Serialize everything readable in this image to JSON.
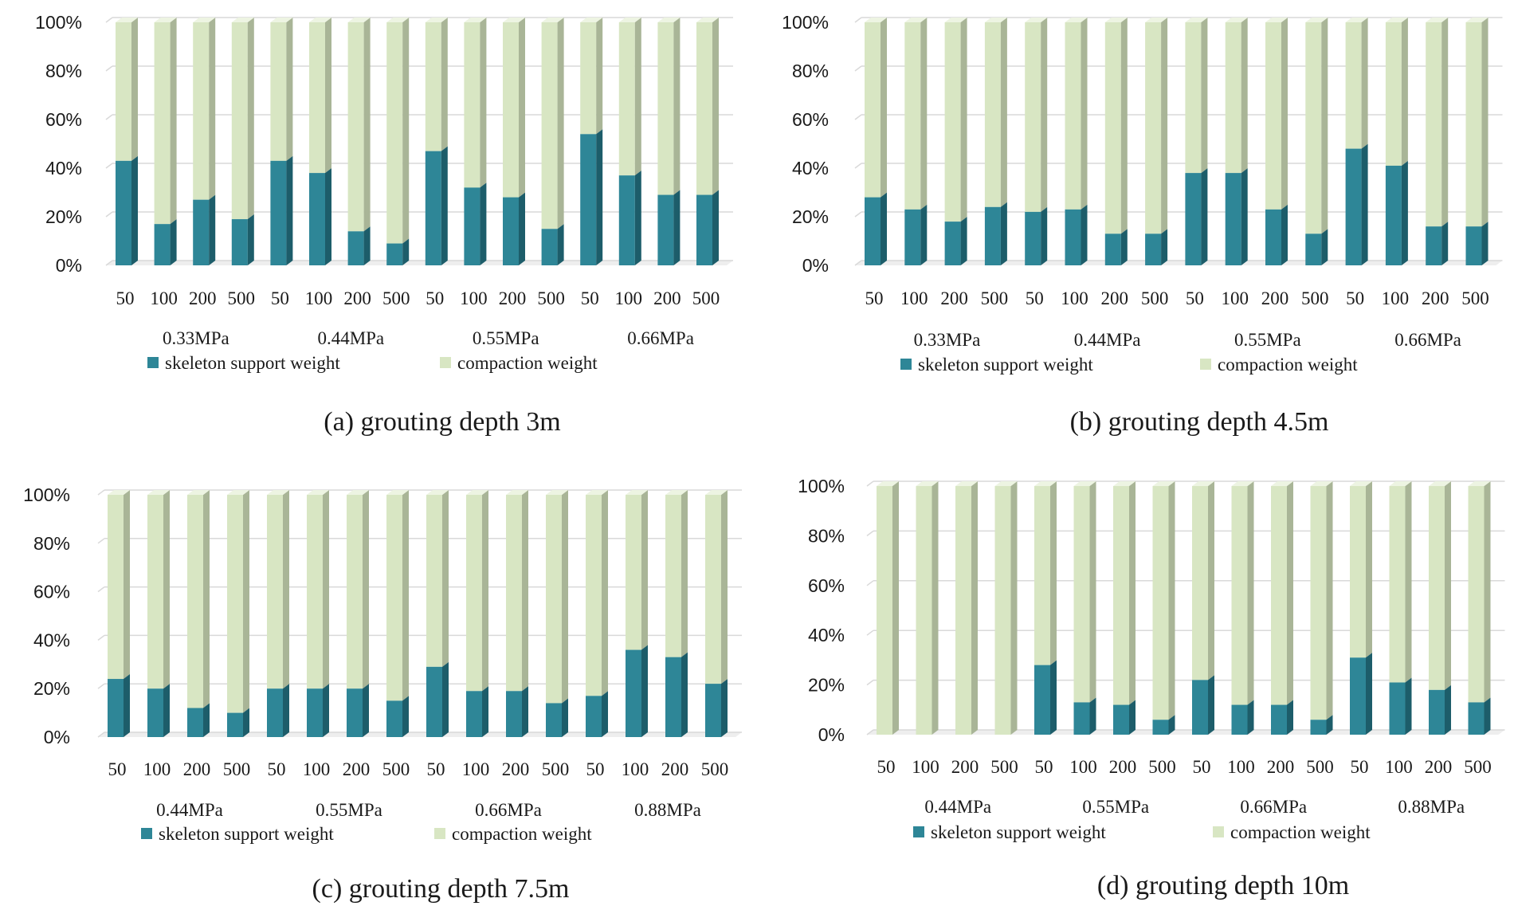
{
  "colors": {
    "skeleton_front": "#2e8697",
    "skeleton_side": "#1d5d6a",
    "skeleton_top": "#5aa5b4",
    "compaction_front": "#d8e6c3",
    "compaction_side": "#a9b597",
    "compaction_top": "#edf4e2",
    "grid": "#d9d9d9"
  },
  "chart_data": [
    {
      "type": "bar",
      "stacked": true,
      "percent": true,
      "caption": "(a) grouting depth 3m",
      "categories": [
        "50",
        "100",
        "200",
        "500",
        "50",
        "100",
        "200",
        "500",
        "50",
        "100",
        "200",
        "500",
        "50",
        "100",
        "200",
        "500"
      ],
      "groups": [
        "0.33MPa",
        "0.44MPa",
        "0.55MPa",
        "0.66MPa"
      ],
      "series": [
        {
          "name": "skeleton support weight",
          "values": [
            43,
            17,
            27,
            19,
            43,
            38,
            14,
            9,
            47,
            32,
            28,
            15,
            54,
            37,
            29,
            29
          ]
        },
        {
          "name": "compaction weight",
          "values": [
            57,
            83,
            73,
            81,
            57,
            62,
            86,
            91,
            53,
            68,
            72,
            85,
            46,
            63,
            71,
            71
          ]
        }
      ],
      "yticks": [
        "0%",
        "20%",
        "40%",
        "60%",
        "80%",
        "100%"
      ],
      "ylim": [
        0,
        100
      ],
      "grid": true,
      "legend": "bottom"
    },
    {
      "type": "bar",
      "stacked": true,
      "percent": true,
      "caption": "(b) grouting depth 4.5m",
      "categories": [
        "50",
        "100",
        "200",
        "500",
        "50",
        "100",
        "200",
        "500",
        "50",
        "100",
        "200",
        "500",
        "50",
        "100",
        "200",
        "500"
      ],
      "groups": [
        "0.33MPa",
        "0.44MPa",
        "0.55MPa",
        "0.66MPa"
      ],
      "series": [
        {
          "name": "skeleton support weight",
          "values": [
            28,
            23,
            18,
            24,
            22,
            23,
            13,
            13,
            38,
            38,
            23,
            13,
            48,
            41,
            16,
            16
          ]
        },
        {
          "name": "compaction weight",
          "values": [
            72,
            77,
            82,
            76,
            78,
            77,
            87,
            87,
            62,
            62,
            77,
            87,
            52,
            59,
            84,
            84
          ]
        }
      ],
      "yticks": [
        "0%",
        "20%",
        "40%",
        "60%",
        "80%",
        "100%"
      ],
      "ylim": [
        0,
        100
      ],
      "grid": true,
      "legend": "bottom"
    },
    {
      "type": "bar",
      "stacked": true,
      "percent": true,
      "caption": "(c) grouting depth 7.5m",
      "categories": [
        "50",
        "100",
        "200",
        "500",
        "50",
        "100",
        "200",
        "500",
        "50",
        "100",
        "200",
        "500",
        "50",
        "100",
        "200",
        "500"
      ],
      "groups": [
        "0.44MPa",
        "0.55MPa",
        "0.66MPa",
        "0.88MPa"
      ],
      "series": [
        {
          "name": "skeleton support weight",
          "values": [
            24,
            20,
            12,
            10,
            20,
            20,
            20,
            15,
            29,
            19,
            19,
            14,
            17,
            36,
            33,
            22
          ]
        },
        {
          "name": "compaction weight",
          "values": [
            76,
            80,
            88,
            90,
            80,
            80,
            80,
            85,
            71,
            81,
            81,
            86,
            83,
            64,
            67,
            78
          ]
        }
      ],
      "yticks": [
        "0%",
        "20%",
        "40%",
        "60%",
        "80%",
        "100%"
      ],
      "ylim": [
        0,
        100
      ],
      "grid": true,
      "legend": "bottom"
    },
    {
      "type": "bar",
      "stacked": true,
      "percent": true,
      "caption": "(d) grouting depth 10m",
      "categories": [
        "50",
        "100",
        "200",
        "500",
        "50",
        "100",
        "200",
        "500",
        "50",
        "100",
        "200",
        "500",
        "50",
        "100",
        "200",
        "500"
      ],
      "groups": [
        "0.44MPa",
        "0.55MPa",
        "0.66MPa",
        "0.88MPa"
      ],
      "series": [
        {
          "name": "skeleton support weight",
          "values": [
            0,
            0,
            0,
            0,
            28,
            13,
            12,
            6,
            22,
            12,
            12,
            6,
            31,
            21,
            18,
            13
          ]
        },
        {
          "name": "compaction weight",
          "values": [
            100,
            100,
            100,
            100,
            72,
            87,
            88,
            94,
            78,
            88,
            88,
            94,
            69,
            79,
            82,
            87
          ]
        }
      ],
      "yticks": [
        "0%",
        "20%",
        "40%",
        "60%",
        "80%",
        "100%"
      ],
      "ylim": [
        0,
        100
      ],
      "grid": true,
      "legend": "bottom"
    }
  ]
}
